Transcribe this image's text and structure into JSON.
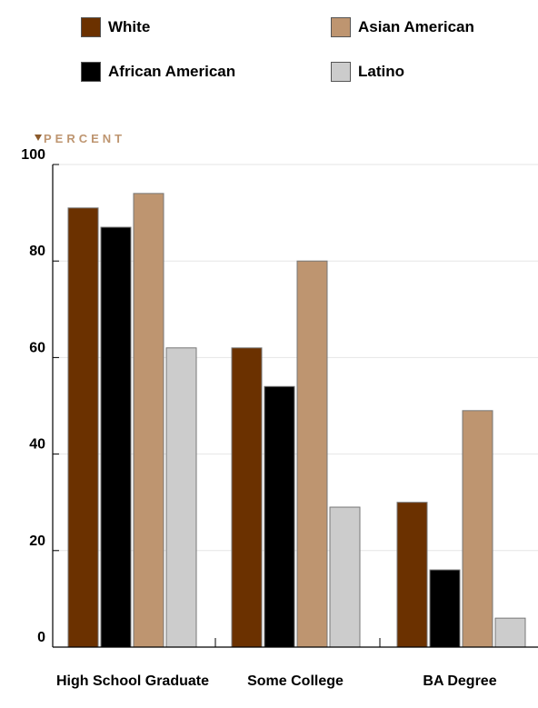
{
  "chart_data": {
    "type": "bar",
    "ylabel": "PERCENT",
    "ylim": [
      0,
      100
    ],
    "yticks": [
      0,
      20,
      40,
      60,
      80,
      100
    ],
    "grid": true,
    "legend_position": "top",
    "categories": [
      "High School Graduate",
      "Some College",
      "BA Degree"
    ],
    "series": [
      {
        "name": "White",
        "color": "#6b3100",
        "values": [
          91,
          62,
          30
        ]
      },
      {
        "name": "African American",
        "color": "#000000",
        "values": [
          87,
          54,
          16
        ]
      },
      {
        "name": "Asian American",
        "color": "#be9570",
        "values": [
          94,
          80,
          49
        ]
      },
      {
        "name": "Latino",
        "color": "#cccccc",
        "values": [
          62,
          29,
          6
        ]
      }
    ],
    "accent_color": "#8b5a2b"
  }
}
